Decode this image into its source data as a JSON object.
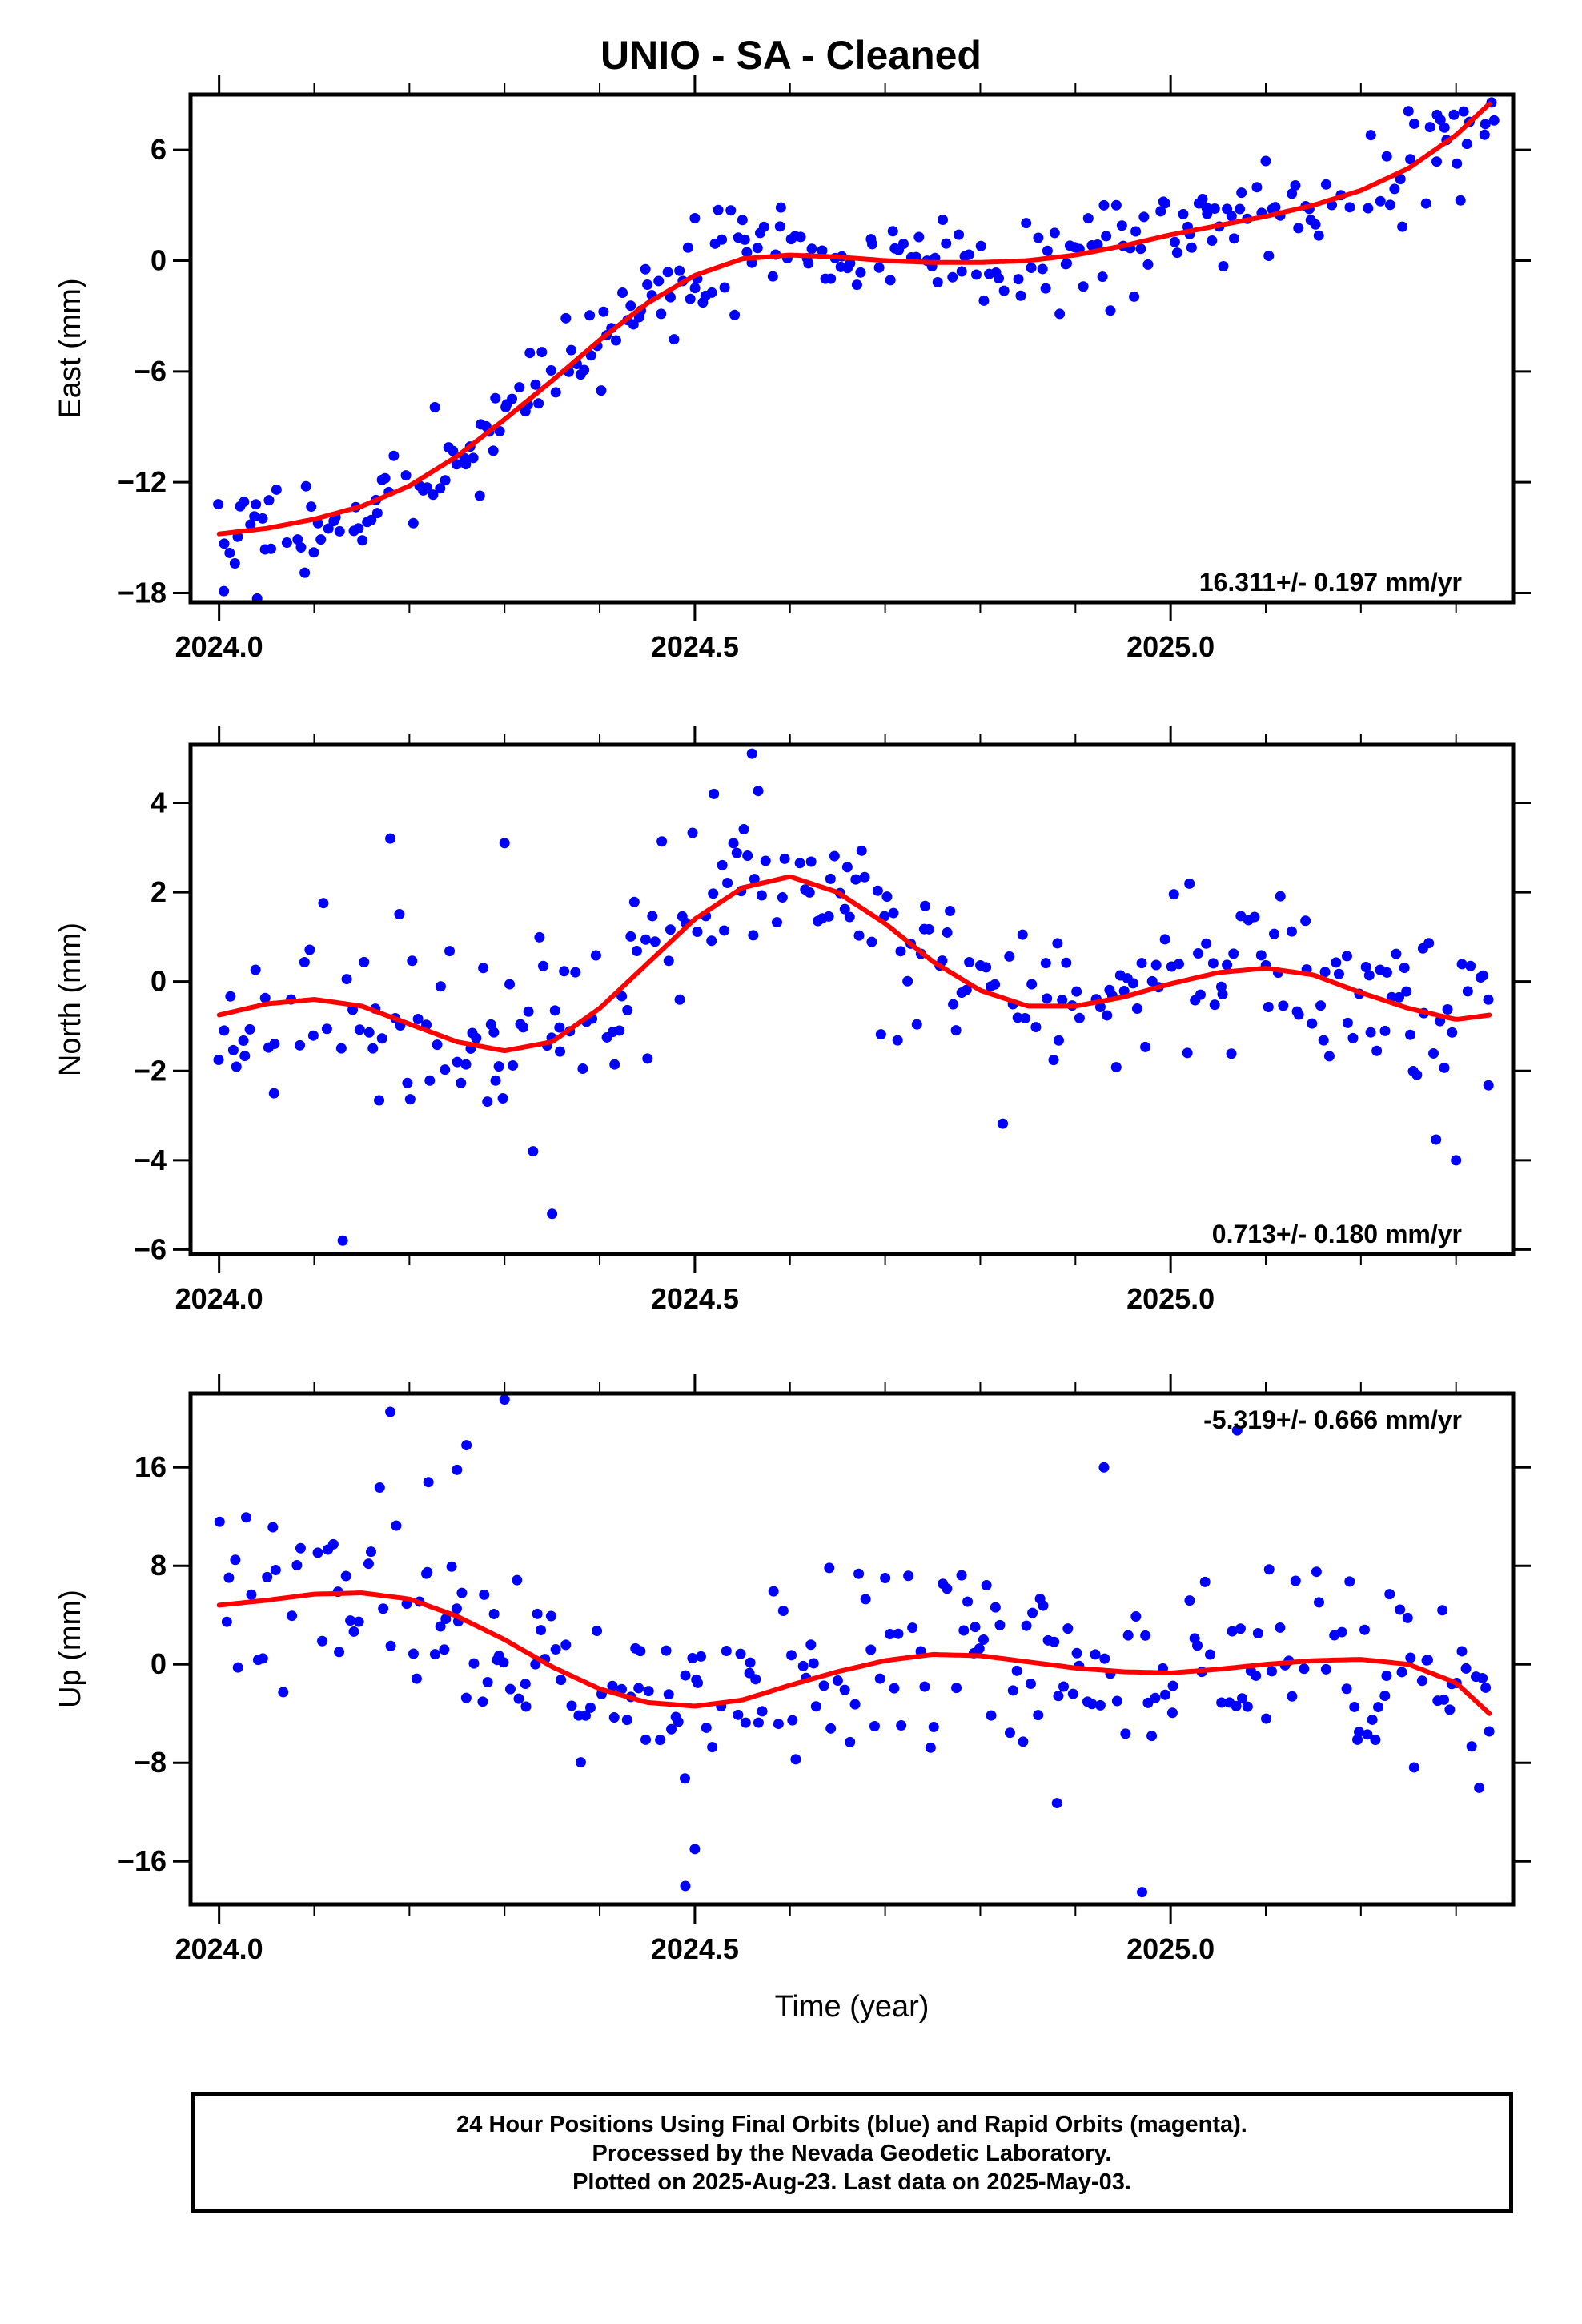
{
  "title": "UNIO  - SA - Cleaned",
  "footer": {
    "line1": "24 Hour Positions Using Final Orbits (blue) and Rapid Orbits (magenta).",
    "line2": "Processed by the Nevada Geodetic Laboratory.",
    "line3": "Plotted on 2025-Aug-23. Last data on 2025-May-03."
  },
  "colors": {
    "points": "#0000ff",
    "fit": "#ff0000",
    "axes": "#000000"
  },
  "chart_data": [
    {
      "type": "scatter",
      "name": "east",
      "ylabel": "East (mm)",
      "xlabel": "",
      "xlim": [
        2023.97,
        2025.36
      ],
      "ylim": [
        -18.5,
        9
      ],
      "xticks": [
        2024.0,
        2024.5,
        2025.0
      ],
      "xtick_labels": [
        "2024.0",
        "2024.5",
        "2025.0"
      ],
      "yticks": [
        -18,
        -12,
        -6,
        0,
        6
      ],
      "ytick_labels": [
        "−18",
        "−12",
        "−6",
        "0",
        "6"
      ],
      "rate_label": "16.311+/- 0.197 mm/yr",
      "rate_position": "bottom-right",
      "fit_x": [
        2024.0,
        2024.05,
        2024.1,
        2024.15,
        2024.2,
        2024.25,
        2024.3,
        2024.35,
        2024.4,
        2024.45,
        2024.5,
        2024.55,
        2024.6,
        2024.65,
        2024.7,
        2024.75,
        2024.8,
        2024.85,
        2024.9,
        2024.95,
        2025.0,
        2025.05,
        2025.1,
        2025.15,
        2025.2,
        2025.25,
        2025.3,
        2025.335
      ],
      "fit_y": [
        -14.8,
        -14.5,
        -14.0,
        -13.3,
        -12.2,
        -10.6,
        -8.6,
        -6.5,
        -4.3,
        -2.3,
        -0.8,
        0.1,
        0.3,
        0.2,
        0.0,
        -0.1,
        -0.1,
        0.0,
        0.3,
        0.8,
        1.4,
        1.9,
        2.4,
        3.0,
        3.8,
        5.0,
        6.8,
        8.5
      ],
      "points": {
        "t0": 2024.0,
        "dt": 0.004,
        "n": 335,
        "seed": 11,
        "noise": 1.25,
        "extra": [
          [
            2024.005,
            -17.9
          ],
          [
            2024.04,
            -18.3
          ],
          [
            2024.09,
            -16.9
          ],
          [
            2024.55,
            2.2
          ],
          [
            2024.5,
            2.3
          ],
          [
            2024.93,
            3.0
          ],
          [
            2025.28,
            7.9
          ],
          [
            2025.34,
            7.6
          ],
          [
            2025.25,
            8.1
          ],
          [
            2025.1,
            5.4
          ]
        ]
      }
    },
    {
      "type": "scatter",
      "name": "north",
      "ylabel": "North (mm)",
      "xlabel": "",
      "xlim": [
        2023.97,
        2025.36
      ],
      "ylim": [
        -6.1,
        5.3
      ],
      "xticks": [
        2024.0,
        2024.5,
        2025.0
      ],
      "xtick_labels": [
        "2024.0",
        "2024.5",
        "2025.0"
      ],
      "yticks": [
        -6,
        -4,
        -2,
        0,
        2,
        4
      ],
      "ytick_labels": [
        "−6",
        "−4",
        "−2",
        "0",
        "2",
        "4"
      ],
      "rate_label": "0.713+/- 0.180 mm/yr",
      "rate_position": "bottom-right",
      "fit_x": [
        2024.0,
        2024.05,
        2024.1,
        2024.15,
        2024.2,
        2024.25,
        2024.3,
        2024.35,
        2024.4,
        2024.45,
        2024.5,
        2024.55,
        2024.6,
        2024.65,
        2024.7,
        2024.75,
        2024.8,
        2024.85,
        2024.9,
        2024.95,
        2025.0,
        2025.05,
        2025.1,
        2025.15,
        2025.2,
        2025.25,
        2025.3,
        2025.335
      ],
      "fit_y": [
        -0.75,
        -0.5,
        -0.4,
        -0.55,
        -0.95,
        -1.35,
        -1.55,
        -1.35,
        -0.6,
        0.4,
        1.4,
        2.1,
        2.35,
        2.0,
        1.3,
        0.45,
        -0.2,
        -0.55,
        -0.55,
        -0.35,
        -0.05,
        0.2,
        0.3,
        0.15,
        -0.25,
        -0.6,
        -0.85,
        -0.75
      ],
      "points": {
        "t0": 2024.0,
        "dt": 0.004,
        "n": 335,
        "seed": 23,
        "noise": 0.95,
        "extra": [
          [
            2024.13,
            -5.8
          ],
          [
            2024.35,
            -5.2
          ],
          [
            2024.56,
            5.1
          ],
          [
            2024.52,
            4.2
          ],
          [
            2024.18,
            3.2
          ],
          [
            2024.3,
            3.1
          ],
          [
            2025.3,
            -4.0
          ],
          [
            2024.33,
            -3.8
          ]
        ]
      }
    },
    {
      "type": "scatter",
      "name": "up",
      "ylabel": "Up (mm)",
      "xlabel": "Time (year)",
      "xlim": [
        2023.97,
        2025.36
      ],
      "ylim": [
        -19.5,
        22
      ],
      "xticks": [
        2024.0,
        2024.5,
        2025.0
      ],
      "xtick_labels": [
        "2024.0",
        "2024.5",
        "2025.0"
      ],
      "yticks": [
        -16,
        -8,
        0,
        8,
        16
      ],
      "ytick_labels": [
        "−16",
        "−8",
        "0",
        "8",
        "16"
      ],
      "rate_label": "-5.319+/- 0.666 mm/yr",
      "rate_position": "top-right",
      "fit_x": [
        2024.0,
        2024.05,
        2024.1,
        2024.15,
        2024.2,
        2024.25,
        2024.3,
        2024.35,
        2024.4,
        2024.45,
        2024.5,
        2024.55,
        2024.6,
        2024.65,
        2024.7,
        2024.75,
        2024.8,
        2024.85,
        2024.9,
        2024.95,
        2025.0,
        2025.05,
        2025.1,
        2025.15,
        2025.2,
        2025.25,
        2025.3,
        2025.335
      ],
      "fit_y": [
        4.8,
        5.2,
        5.7,
        5.8,
        5.3,
        3.9,
        2.0,
        -0.2,
        -2.0,
        -3.1,
        -3.4,
        -2.9,
        -1.7,
        -0.6,
        0.3,
        0.8,
        0.7,
        0.2,
        -0.3,
        -0.6,
        -0.7,
        -0.4,
        0.0,
        0.3,
        0.4,
        0.0,
        -1.5,
        -4.0
      ],
      "points": {
        "t0": 2024.0,
        "dt": 0.004,
        "n": 335,
        "seed": 37,
        "noise": 3.6,
        "extra": [
          [
            2024.3,
            21.5
          ],
          [
            2024.18,
            20.5
          ],
          [
            2025.07,
            19.0
          ],
          [
            2024.26,
            17.8
          ],
          [
            2024.25,
            15.8
          ],
          [
            2024.49,
            -18.0
          ],
          [
            2024.97,
            -18.5
          ],
          [
            2024.5,
            -15.0
          ],
          [
            2024.22,
            14.8
          ],
          [
            2024.93,
            16.0
          ]
        ]
      }
    }
  ]
}
